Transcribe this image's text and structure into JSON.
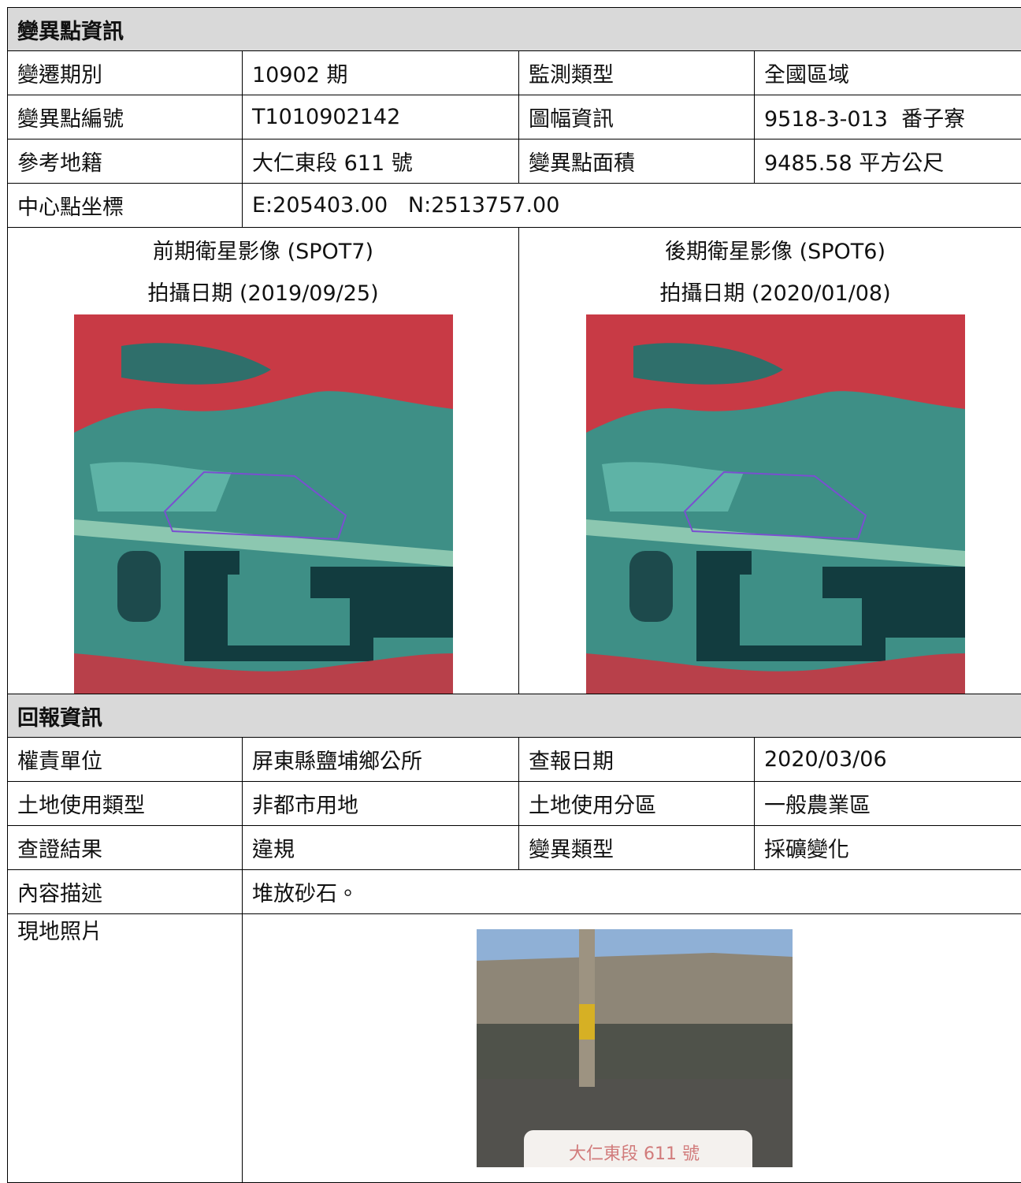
{
  "section1": {
    "title": "變異點資訊",
    "rows": [
      [
        "變遷期別",
        "10902 期",
        "監測類型",
        "全國區域"
      ],
      [
        "變異點編號",
        "T1010902142",
        "圖幅資訊",
        "9518-3-013  番子寮"
      ],
      [
        "參考地籍",
        "大仁東段 611 號",
        "變異點面積",
        "9485.58 平方公尺"
      ],
      [
        "中心點坐標",
        "E:205403.00   N:2513757.00"
      ]
    ]
  },
  "images": [
    {
      "caption": "前期衛星影像 (SPOT7)",
      "date": "拍攝日期 (2019/09/25)"
    },
    {
      "caption": "後期衛星影像 (SPOT6)",
      "date": "拍攝日期 (2020/01/08)"
    }
  ],
  "section2": {
    "title": "回報資訊",
    "rows": [
      [
        "權責單位",
        "屏東縣鹽埔鄉公所",
        "查報日期",
        "2020/03/06"
      ],
      [
        "土地使用類型",
        "非都市用地",
        "土地使用分區",
        "一般農業區"
      ],
      [
        "查證結果",
        "違規",
        "變異類型",
        "採礦變化"
      ],
      [
        "內容描述",
        "堆放砂石。"
      ]
    ]
  },
  "photo": {
    "label": "現地照片",
    "sign_text": "大仁東段 611 號"
  }
}
